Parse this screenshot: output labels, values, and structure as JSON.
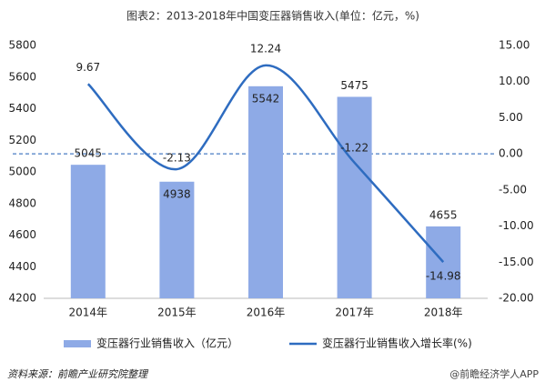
{
  "chart_data": {
    "type": "bar_line",
    "title": "图表2：2013-2018年中国变压器销售收入(单位：亿元，%)",
    "categories": [
      "2014年",
      "2015年",
      "2016年",
      "2017年",
      "2018年"
    ],
    "series": [
      {
        "name": "变压器行业销售收入（亿元）",
        "type": "bar",
        "color": "#8eaae6",
        "values": [
          5045,
          4938,
          5542,
          5475,
          4655
        ]
      },
      {
        "name": "变压器行业销售收入增长率(%)",
        "type": "line",
        "axis": "y2",
        "color": "#2e6cc0",
        "values": [
          9.67,
          -2.13,
          12.24,
          -1.22,
          -14.98
        ]
      }
    ],
    "ylim": [
      4200,
      5800
    ],
    "yticks": [
      4200,
      4400,
      4600,
      4800,
      5000,
      5200,
      5400,
      5600,
      5800
    ],
    "y2lim": [
      -20,
      15
    ],
    "y2ticks": [
      {
        "value": -20,
        "label": "-20.00"
      },
      {
        "value": -15,
        "label": "-15.00"
      },
      {
        "value": -10,
        "label": "-10.00"
      },
      {
        "value": -5,
        "label": "-5.00"
      },
      {
        "value": 0,
        "label": "0.00"
      },
      {
        "value": 5,
        "label": "5.00"
      },
      {
        "value": 10,
        "label": "10.00"
      },
      {
        "value": 15,
        "label": "15.00"
      }
    ],
    "source": "资料来源：前瞻产业研究院整理",
    "watermark": "@前瞻经济学人APP"
  }
}
